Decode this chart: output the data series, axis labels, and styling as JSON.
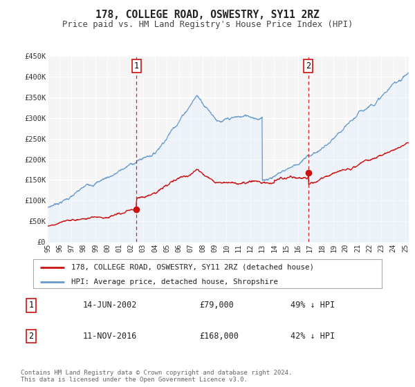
{
  "title": "178, COLLEGE ROAD, OSWESTRY, SY11 2RZ",
  "subtitle": "Price paid vs. HM Land Registry's House Price Index (HPI)",
  "ylim": [
    0,
    450000
  ],
  "yticks": [
    0,
    50000,
    100000,
    150000,
    200000,
    250000,
    300000,
    350000,
    400000,
    450000
  ],
  "ytick_labels": [
    "£0",
    "£50K",
    "£100K",
    "£150K",
    "£200K",
    "£250K",
    "£300K",
    "£350K",
    "£400K",
    "£450K"
  ],
  "xlim_start": 1995.0,
  "xlim_end": 2025.3,
  "background_color": "#ffffff",
  "plot_bg_color": "#f5f5f5",
  "grid_color": "#ffffff",
  "hpi_color": "#6699cc",
  "hpi_fill_color": "#ddeeff",
  "price_color": "#cc1111",
  "sale1_date": 2002.45,
  "sale1_price": 79000,
  "sale2_date": 2016.87,
  "sale2_price": 168000,
  "legend_line1": "178, COLLEGE ROAD, OSWESTRY, SY11 2RZ (detached house)",
  "legend_line2": "HPI: Average price, detached house, Shropshire",
  "annotation1_date": "14-JUN-2002",
  "annotation1_price": "£79,000",
  "annotation1_hpi": "49% ↓ HPI",
  "annotation2_date": "11-NOV-2016",
  "annotation2_price": "£168,000",
  "annotation2_hpi": "42% ↓ HPI",
  "footer": "Contains HM Land Registry data © Crown copyright and database right 2024.\nThis data is licensed under the Open Government Licence v3.0."
}
